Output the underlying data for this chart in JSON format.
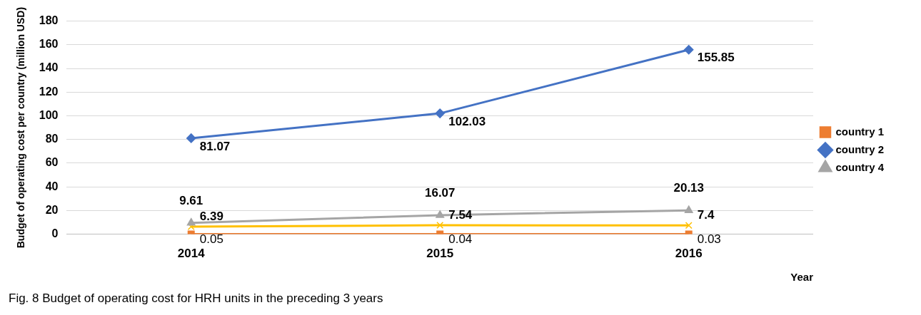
{
  "chart_data": {
    "type": "line",
    "xlabel": "Year",
    "ylabel": "Budget of operating cost per country (million USD)",
    "categories": [
      "2014",
      "2015",
      "2016"
    ],
    "series": [
      {
        "name": "country 1",
        "color": "#ed7d31",
        "values": [
          0.05,
          0.04,
          0.03
        ],
        "marker": "square"
      },
      {
        "name": "country 2",
        "color": "#4472c4",
        "values": [
          81.07,
          102.03,
          155.85
        ],
        "marker": "diamond"
      },
      {
        "name": "country 4",
        "color": "#a5a5a5",
        "values": [
          9.61,
          16.07,
          20.13
        ],
        "marker": "triangle"
      },
      {
        "color": "#ffc000",
        "values": [
          6.39,
          7.54,
          7.4
        ],
        "marker": "cross"
      }
    ],
    "ylim": [
      0,
      180
    ],
    "yticks": [
      0,
      20,
      40,
      60,
      80,
      100,
      120,
      140,
      160,
      180
    ],
    "grid": "y",
    "legend": "right",
    "data_labels": true,
    "line_style": "solid",
    "annotations": [
      "Fig. 8 Budget of operating cost for HRH units in the preceding 3 years"
    ]
  }
}
